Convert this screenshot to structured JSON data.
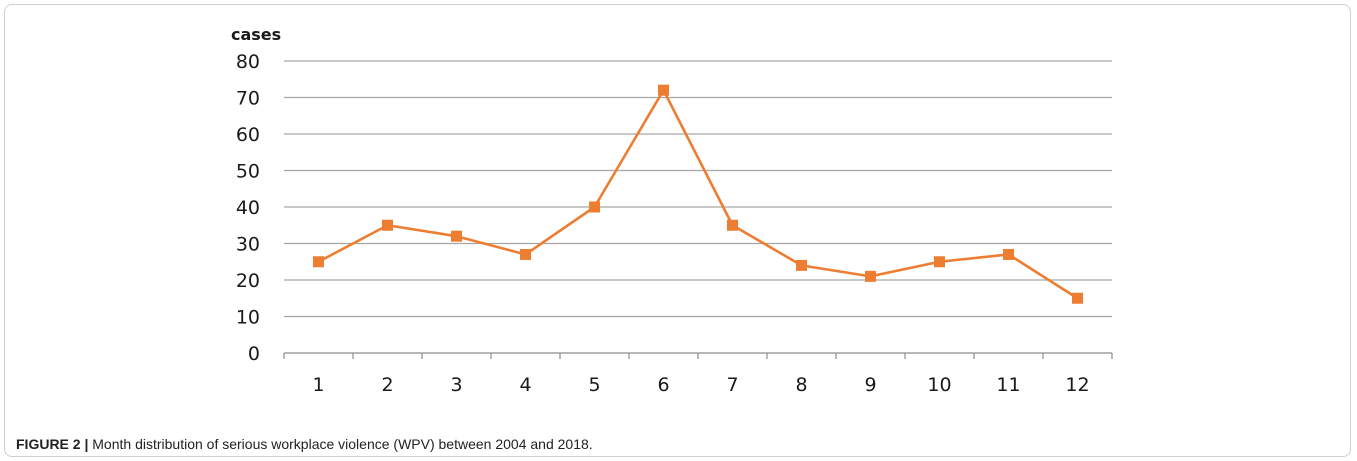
{
  "figure": {
    "caption_label": "FIGURE 2 |",
    "caption_text": " Month distribution of serious workplace violence (WPV) between 2004 and 2018."
  },
  "chart_data": {
    "type": "line",
    "title": "",
    "xlabel": "",
    "ylabel": "cases",
    "categories": [
      "1",
      "2",
      "3",
      "4",
      "5",
      "6",
      "7",
      "8",
      "9",
      "10",
      "11",
      "12"
    ],
    "series": [
      {
        "values": [
          25,
          35,
          32,
          27,
          40,
          72,
          35,
          24,
          21,
          25,
          27,
          15
        ],
        "color": "#ED7D31",
        "marker": "square"
      }
    ],
    "ylim": [
      0,
      80
    ],
    "yticks": [
      0,
      10,
      20,
      30,
      40,
      50,
      60,
      70,
      80
    ],
    "grid": true,
    "gridColor": "#a6a6a6",
    "legend": "none"
  }
}
